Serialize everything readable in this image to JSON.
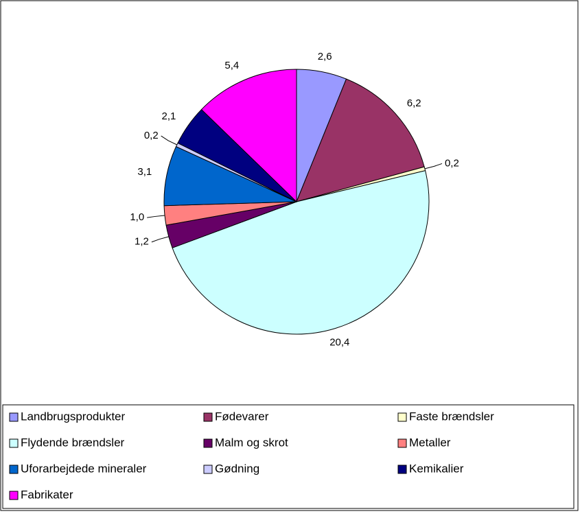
{
  "chart_data": {
    "type": "pie",
    "categories": [
      "Landbrugsprodukter",
      "Fødevarer",
      "Faste brændsler",
      "Flydende brændsler",
      "Malm og skrot",
      "Metaller",
      "Uforarbejdede mineraler",
      "Gødning",
      "Kemikalier",
      "Fabrikater"
    ],
    "values": [
      2.6,
      6.2,
      0.2,
      20.4,
      1.2,
      1.0,
      3.1,
      0.2,
      2.1,
      5.4
    ],
    "value_labels": [
      "2,6",
      "6,2",
      "0,2",
      "20,4",
      "1,2",
      "1,0",
      "3,1",
      "0,2",
      "2,1",
      "5,4"
    ],
    "colors": [
      "#9999ff",
      "#993366",
      "#ffffcc",
      "#ccffff",
      "#660066",
      "#ff8080",
      "#0066cc",
      "#ccccff",
      "#000080",
      "#ff00ff"
    ],
    "legend": "bottom"
  }
}
